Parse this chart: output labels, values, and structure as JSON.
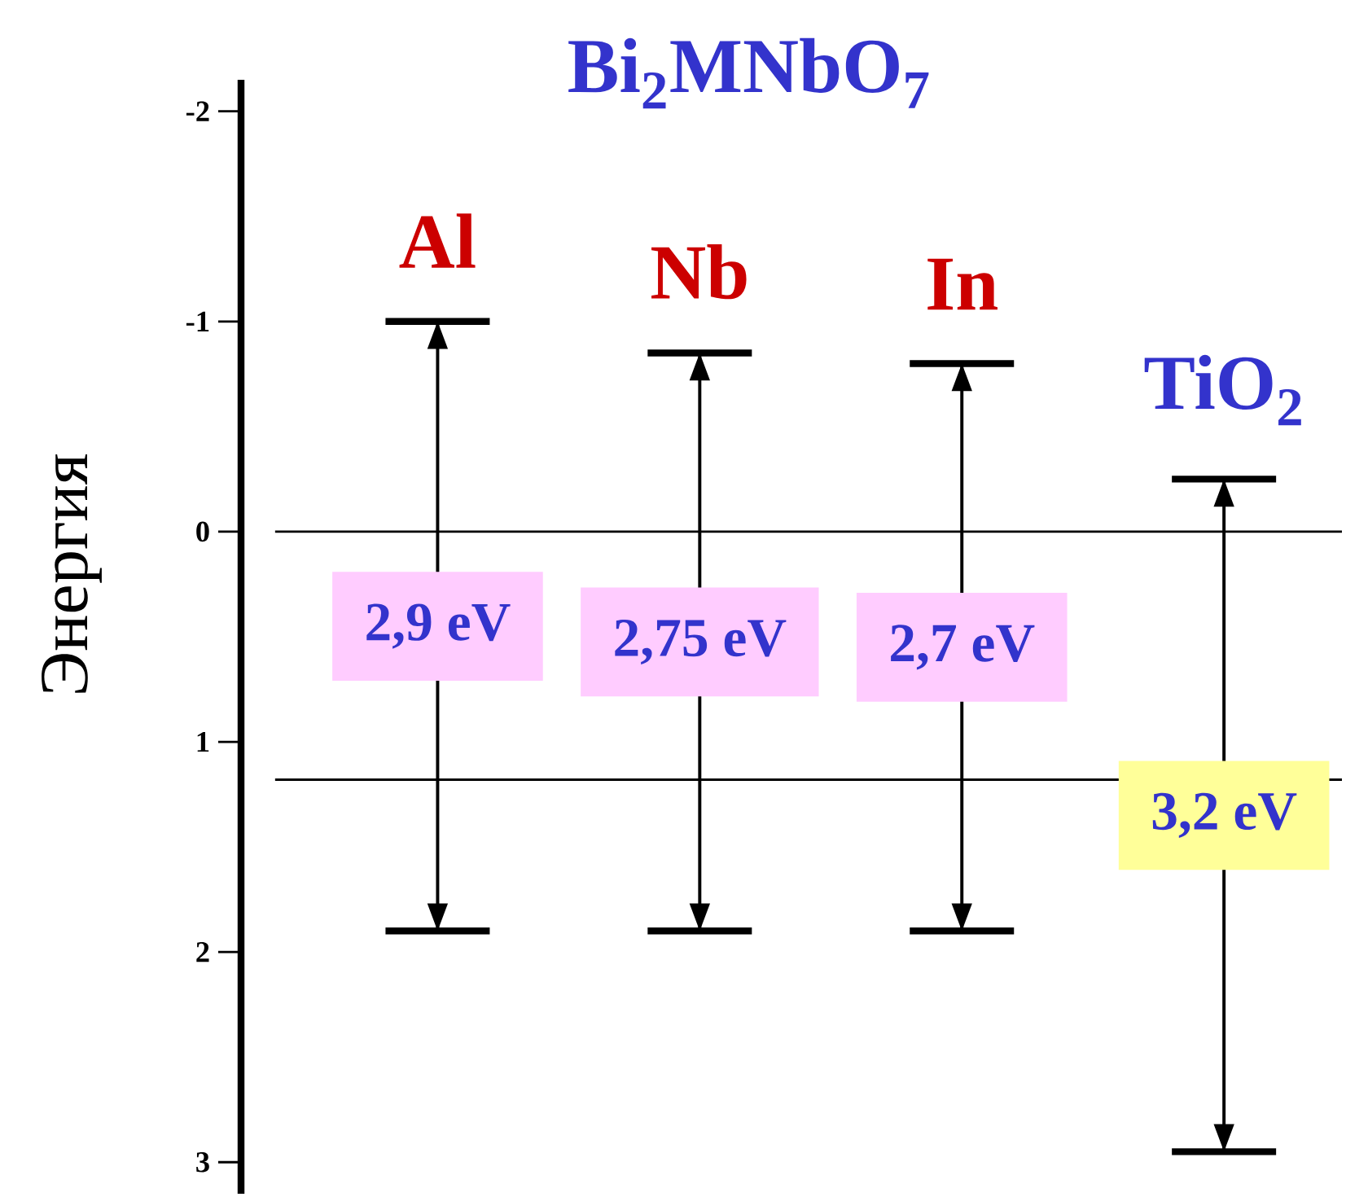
{
  "chart_data": {
    "type": "bar",
    "title": "Bi$_{2}$MNbO$_{7}$",
    "ylabel": "Энергия",
    "categories": [
      "Al",
      "Nb",
      "In",
      "TiO$_{2}$"
    ],
    "base": [
      -1.0,
      -0.85,
      -0.8,
      -0.25
    ],
    "values": [
      2.9,
      2.75,
      2.7,
      3.2
    ],
    "value_labels": [
      "2,9 eV",
      "2,75 eV",
      "2,7 eV",
      "3,2 eV"
    ],
    "color": "#000000",
    "ylim": [
      3.15,
      -2.15
    ],
    "yticks": [
      -2,
      -1,
      0,
      1,
      2,
      3
    ],
    "ref_lines": [
      {
        "axis": "y",
        "value": 0
      },
      {
        "axis": "y",
        "value": 1.18
      }
    ]
  }
}
